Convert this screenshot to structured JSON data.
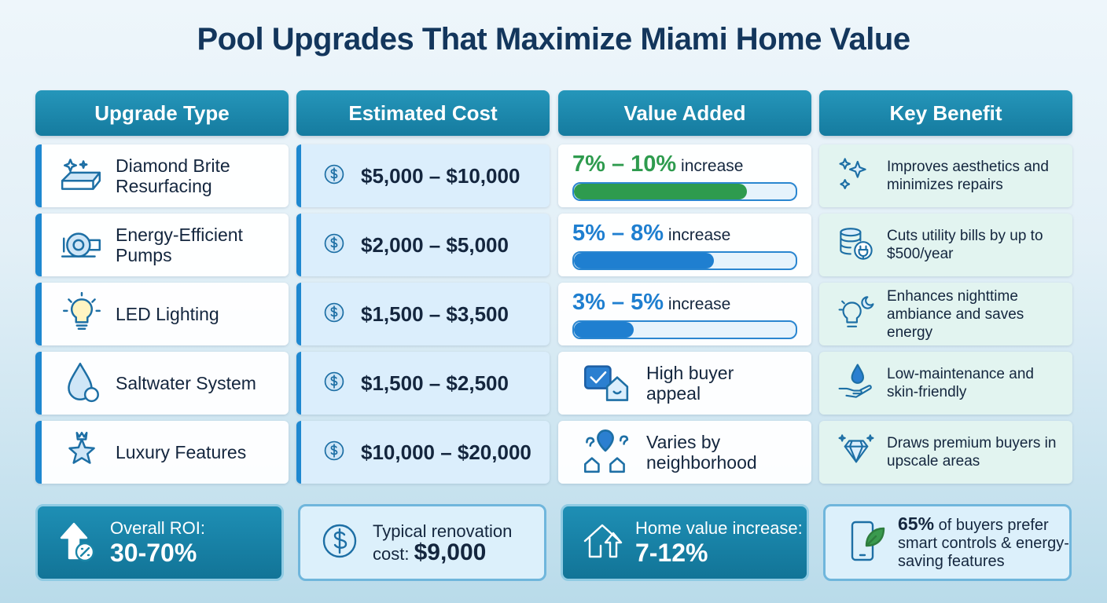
{
  "title": "Pool Upgrades That Maximize Miami Home Value",
  "headers": [
    "Upgrade Type",
    "Estimated Cost",
    "Value Added",
    "Key Benefit"
  ],
  "rows": [
    {
      "upgrade": "Diamond Brite Resurfacing",
      "cost": "$5,000 – $10,000",
      "value": {
        "range": "7% – 10%",
        "suffix": "increase",
        "progress": 78,
        "color": "#2e9b4e"
      },
      "benefit": "Improves aesthetics and minimizes repairs"
    },
    {
      "upgrade": "Energy-Efficient Pumps",
      "cost": "$2,000 – $5,000",
      "value": {
        "range": "5% – 8%",
        "suffix": "increase",
        "progress": 63,
        "color": "#1f7fd0"
      },
      "benefit": "Cuts utility bills by up to $500/year"
    },
    {
      "upgrade": "LED Lighting",
      "cost": "$1,500 – $3,500",
      "value": {
        "range": "3% – 5%",
        "suffix": "increase",
        "progress": 27,
        "color": "#1f7fd0"
      },
      "benefit": "Enhances nighttime ambiance and saves energy"
    },
    {
      "upgrade": "Saltwater System",
      "cost": "$1,500 – $2,500",
      "value": {
        "text": "High buyer appeal"
      },
      "benefit": "Low-maintenance and skin-friendly"
    },
    {
      "upgrade": "Luxury Features",
      "cost": "$10,000 – $20,000",
      "value": {
        "text": "Varies by neighborhood"
      },
      "benefit": "Draws premium buyers in upscale areas"
    }
  ],
  "summary": [
    {
      "label": "Overall ROI:",
      "value": "30-70%"
    },
    {
      "label": "Typical renovation cost:",
      "value": "$9,000"
    },
    {
      "label": "Home value increase:",
      "value": "7-12%"
    },
    {
      "value": "65%",
      "label": "of buyers prefer smart controls & energy-saving features"
    }
  ]
}
